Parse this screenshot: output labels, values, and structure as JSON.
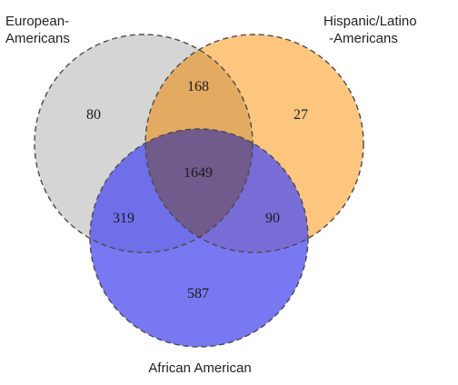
{
  "diagram": {
    "type": "venn",
    "sets": [
      {
        "id": "european",
        "label_lines": [
          "European-",
          "Americans"
        ],
        "color": "#cfcfcf"
      },
      {
        "id": "hispanic",
        "label_lines": [
          "Hispanic/Latino",
          "-Americans"
        ],
        "color": "#fbb862"
      },
      {
        "id": "african",
        "label_lines": [
          "African American"
        ],
        "color": "#6060f2"
      }
    ],
    "regions": {
      "european_only": "80",
      "hispanic_only": "27",
      "african_only": "587",
      "european_hispanic": "168",
      "european_african": "319",
      "hispanic_african": "90",
      "all_three": "1649"
    },
    "outline_color": "#4a4a4a"
  }
}
